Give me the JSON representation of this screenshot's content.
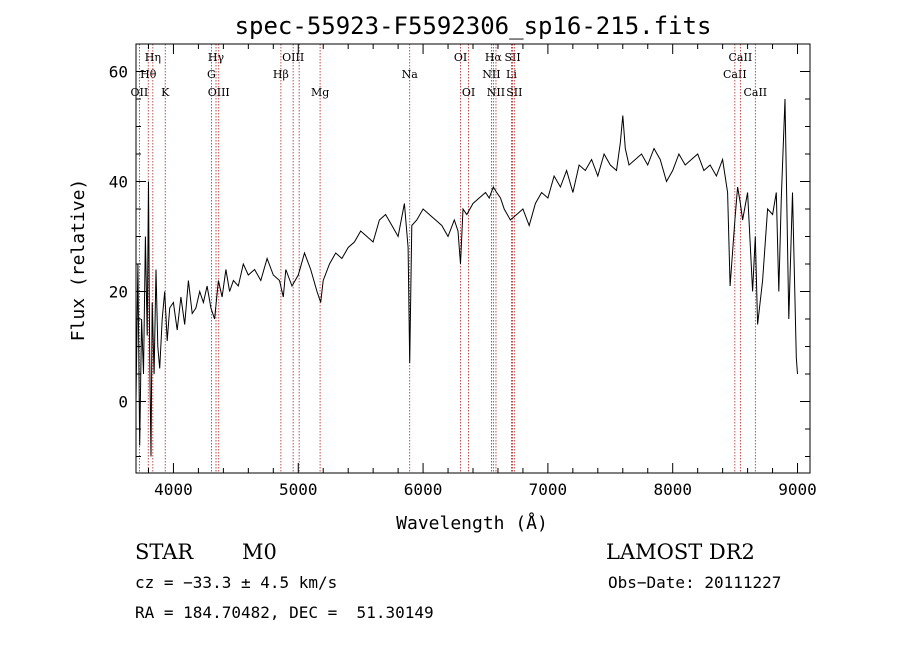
{
  "chart_data": {
    "type": "line",
    "title": "spec-55923-F5592306_sp16-215.fits",
    "xlabel": "Wavelength (Å)",
    "ylabel": "Flux (relative)",
    "xlim": [
      3700,
      9100
    ],
    "ylim": [
      -13,
      65
    ],
    "x_ticks": [
      4000,
      5000,
      6000,
      7000,
      8000,
      9000
    ],
    "y_ticks": [
      0,
      20,
      40,
      60
    ],
    "grid": false,
    "line_color": "#000000",
    "marker_color": "#b22222",
    "series": [
      {
        "x": [
          3700,
          3715,
          3730,
          3745,
          3760,
          3775,
          3790,
          3800,
          3810,
          3820,
          3830,
          3845,
          3860,
          3875,
          3890,
          3910,
          3930,
          3950,
          3970,
          4000,
          4030,
          4060,
          4090,
          4120,
          4150,
          4180,
          4210,
          4240,
          4270,
          4300,
          4330,
          4360,
          4390,
          4420,
          4450,
          4480,
          4520,
          4560,
          4600,
          4650,
          4700,
          4750,
          4800,
          4850,
          4880,
          4900,
          4950,
          5000,
          5050,
          5100,
          5150,
          5180,
          5200,
          5250,
          5300,
          5350,
          5400,
          5450,
          5500,
          5550,
          5600,
          5650,
          5700,
          5750,
          5800,
          5850,
          5880,
          5893,
          5910,
          5950,
          6000,
          6050,
          6100,
          6150,
          6200,
          6250,
          6280,
          6300,
          6320,
          6350,
          6400,
          6450,
          6500,
          6530,
          6563,
          6590,
          6620,
          6650,
          6700,
          6750,
          6800,
          6850,
          6900,
          6950,
          7000,
          7050,
          7100,
          7150,
          7200,
          7250,
          7300,
          7350,
          7400,
          7450,
          7500,
          7550,
          7580,
          7600,
          7620,
          7650,
          7700,
          7750,
          7800,
          7850,
          7900,
          7950,
          8000,
          8050,
          8100,
          8150,
          8200,
          8250,
          8300,
          8350,
          8400,
          8440,
          8460,
          8498,
          8520,
          8542,
          8560,
          8600,
          8640,
          8662,
          8680,
          8720,
          8760,
          8800,
          8830,
          8850,
          8870,
          8900,
          8930,
          8960,
          8990,
          9000
        ],
        "y": [
          0,
          25,
          -8,
          15,
          5,
          30,
          12,
          40,
          8,
          -10,
          18,
          5,
          24,
          10,
          6,
          15,
          20,
          11,
          17,
          18,
          13,
          19,
          14,
          22,
          16,
          17,
          20,
          18,
          21,
          17,
          15,
          22,
          19,
          24,
          20,
          22,
          21,
          25,
          23,
          24,
          22,
          26,
          23,
          22,
          19,
          24,
          21,
          23,
          27,
          24,
          20,
          18,
          22,
          25,
          27,
          26,
          28,
          29,
          31,
          30,
          29,
          33,
          34,
          32,
          30,
          36,
          28,
          7,
          32,
          33,
          35,
          34,
          33,
          32,
          30,
          33,
          31,
          25,
          35,
          34,
          36,
          37,
          38,
          37,
          39,
          38,
          37,
          35,
          33,
          34,
          35,
          32,
          36,
          38,
          37,
          41,
          39,
          42,
          38,
          43,
          42,
          44,
          41,
          45,
          43,
          42,
          47,
          52,
          46,
          43,
          44,
          45,
          43,
          46,
          44,
          40,
          42,
          45,
          43,
          44,
          45,
          42,
          43,
          41,
          44,
          38,
          21,
          33,
          39,
          36,
          33,
          38,
          20,
          30,
          14,
          22,
          35,
          34,
          38,
          20,
          37,
          55,
          15,
          38,
          8,
          5
        ]
      }
    ],
    "line_markers": [
      {
        "x": 3727,
        "label": "OII",
        "row": 2
      },
      {
        "x": 3798,
        "label": "Hθ",
        "row": 1
      },
      {
        "x": 3835,
        "label": "Hη",
        "row": 0
      },
      {
        "x": 3934,
        "label": "K",
        "row": 2
      },
      {
        "x": 4304,
        "label": "G",
        "row": 1
      },
      {
        "x": 4341,
        "label": "Hγ",
        "row": 0
      },
      {
        "x": 4363,
        "label": "OIII",
        "row": 2
      },
      {
        "x": 4861,
        "label": "Hβ",
        "row": 1
      },
      {
        "x": 4959,
        "label": "OIII",
        "row": 0
      },
      {
        "x": 5007,
        "label": "",
        "row": 0
      },
      {
        "x": 5175,
        "label": "Mg",
        "row": 2
      },
      {
        "x": 5893,
        "label": "Na",
        "row": 1
      },
      {
        "x": 6300,
        "label": "OI",
        "row": 0
      },
      {
        "x": 6364,
        "label": "OI",
        "row": 2
      },
      {
        "x": 6548,
        "label": "NII",
        "row": 1
      },
      {
        "x": 6563,
        "label": "Hα",
        "row": 0
      },
      {
        "x": 6584,
        "label": "NII",
        "row": 2
      },
      {
        "x": 6708,
        "label": "Li",
        "row": 1
      },
      {
        "x": 6717,
        "label": "SII",
        "row": 0
      },
      {
        "x": 6731,
        "label": "SII",
        "row": 2
      },
      {
        "x": 8498,
        "label": "CaII",
        "row": 1
      },
      {
        "x": 8542,
        "label": "CaII",
        "row": 0
      },
      {
        "x": 8662,
        "label": "CaII",
        "row": 2
      }
    ]
  },
  "info": {
    "class": "STAR",
    "subclass": "M0",
    "survey": "LAMOST DR2",
    "cz": "cz = −33.3 ± 4.5 km/s",
    "obs_date": "Obs−Date: 20111227",
    "coords": "RA = 184.70482, DEC =  51.30149"
  }
}
